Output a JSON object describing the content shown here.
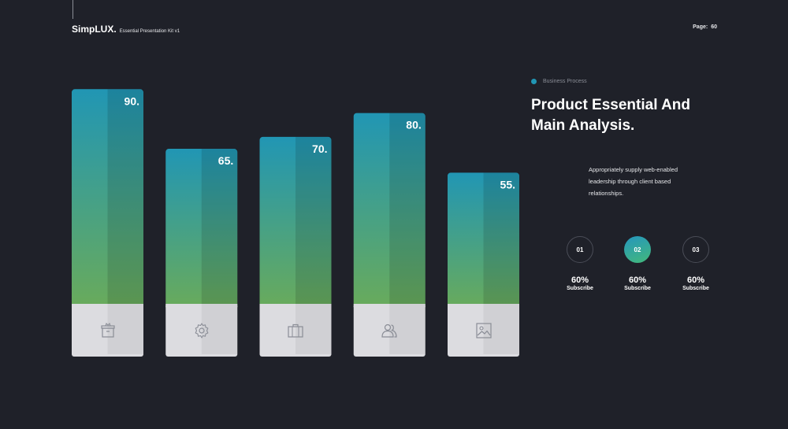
{
  "header": {
    "brand": "SimpLUX.",
    "subtitle": "Essential Presentation Kit v1",
    "page_label": "Page:",
    "page_number": "60"
  },
  "chart_data": {
    "type": "bar",
    "categories": [
      "",
      "",
      "",
      "",
      ""
    ],
    "values": [
      90,
      65,
      70,
      80,
      55
    ],
    "data_labels": [
      "90.",
      "65.",
      "70.",
      "80.",
      "55."
    ],
    "category_icons": [
      "box-icon",
      "gear-icon",
      "briefcase-icon",
      "users-icon",
      "image-icon"
    ],
    "title": "",
    "xlabel": "",
    "ylabel": "",
    "ylim": [
      0,
      100
    ],
    "grid": false,
    "colors": {
      "bar_top": "#2196b4",
      "bar_bottom": "#6aab5a",
      "icon_panel": "#dcdce0"
    }
  },
  "side": {
    "kicker": "Business Process",
    "title_line1": "Product Essential And",
    "title_line2": "Main Analysis.",
    "desc_line1": "Appropriately supply web-enabled",
    "desc_line2": "leadership through client based",
    "desc_line3": "relationships."
  },
  "steps": [
    {
      "number": "01",
      "value": "60%",
      "label": "Subscribe",
      "active": false
    },
    {
      "number": "02",
      "value": "60%",
      "label": "Subscribe",
      "active": true
    },
    {
      "number": "03",
      "value": "60%",
      "label": "Subscribe",
      "active": false
    }
  ],
  "colors": {
    "background": "#1f2129",
    "accent": "#2196b4"
  }
}
